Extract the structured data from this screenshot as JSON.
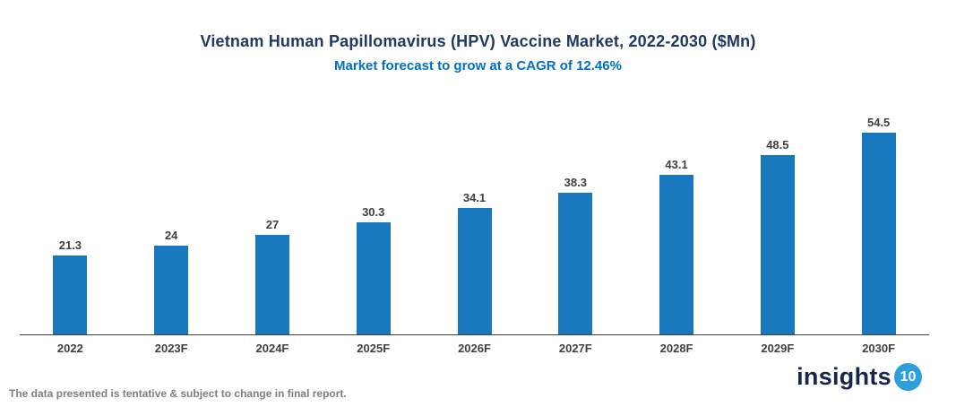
{
  "chart_data": {
    "type": "bar",
    "title": "Vietnam Human Papillomavirus (HPV) Vaccine Market, 2022-2030 ($Mn)",
    "subtitle": "Market forecast to grow at a CAGR of 12.46%",
    "categories": [
      "2022",
      "2023F",
      "2024F",
      "2025F",
      "2026F",
      "2027F",
      "2028F",
      "2029F",
      "2030F"
    ],
    "values": [
      21.3,
      24,
      27,
      30.3,
      34.1,
      38.3,
      43.1,
      48.5,
      54.5
    ],
    "value_labels": [
      "21.3",
      "24",
      "27",
      "30.3",
      "34.1",
      "38.3",
      "43.1",
      "48.5",
      "54.5"
    ],
    "xlabel": "",
    "ylabel": "",
    "ylim": [
      0,
      54.5
    ],
    "grid": false,
    "legend": "none",
    "bar_color": "#1878be"
  },
  "footer": {
    "disclaimer": "The data presented is tentative & subject to change in final report.",
    "logo_text": "insights",
    "logo_number": "10"
  },
  "colors": {
    "title": "#1f3864",
    "subtitle": "#0070c0",
    "bar": "#1878be",
    "axis": "#404040",
    "label": "#404040",
    "disclaimer": "#7f7f7f",
    "logo_navy": "#16284a",
    "logo_badge": "#2da0dc"
  }
}
